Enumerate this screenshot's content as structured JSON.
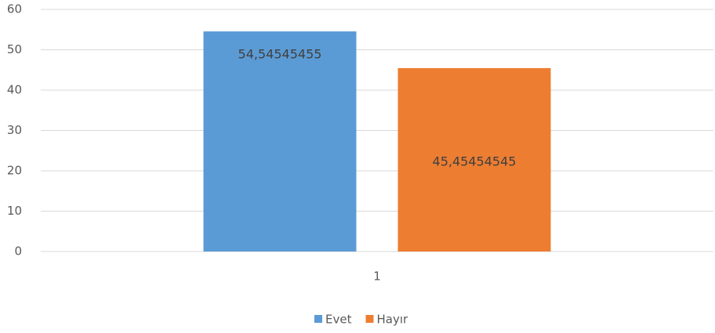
{
  "chart_data": {
    "type": "bar",
    "categories": [
      "1"
    ],
    "series": [
      {
        "name": "Evet",
        "color": "#5b9bd5",
        "values": [
          54.54545455
        ],
        "value_labels": [
          "54,54545455"
        ]
      },
      {
        "name": "Hayır",
        "color": "#ed7d31",
        "values": [
          45.45454545
        ],
        "value_labels": [
          "45,45454545"
        ]
      }
    ],
    "ylim": [
      0,
      60
    ],
    "yticks": [
      0,
      10,
      20,
      30,
      40,
      50,
      60
    ],
    "grid": true,
    "legend": "bottom"
  }
}
